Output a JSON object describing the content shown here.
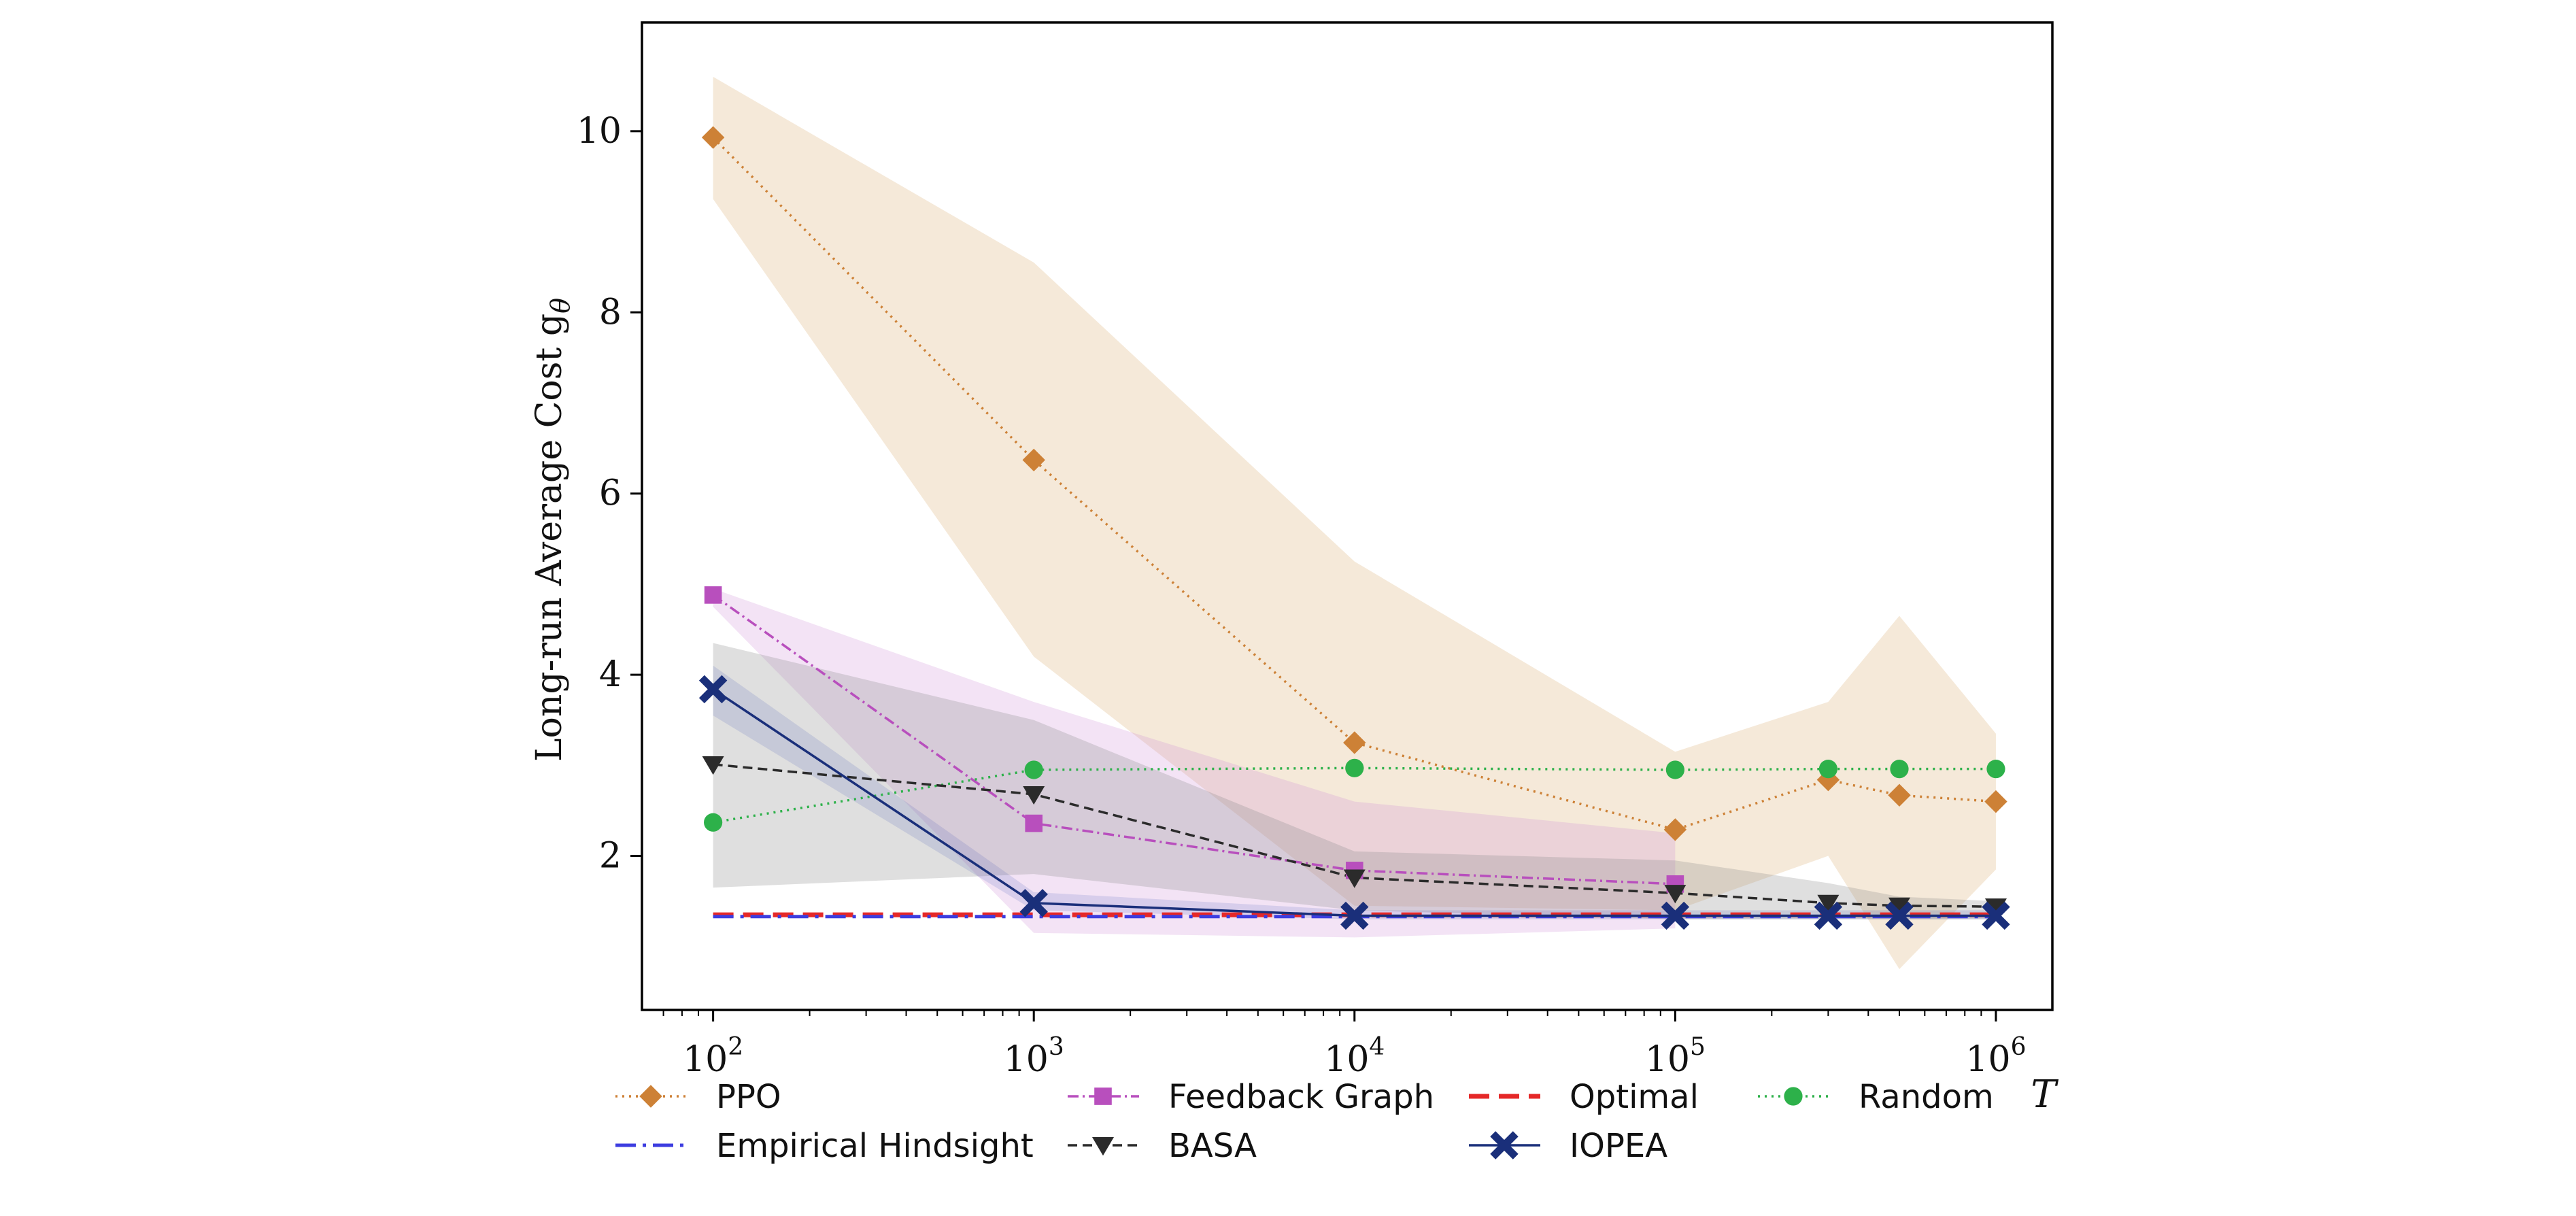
{
  "chart_data": {
    "type": "line",
    "xscale": "log",
    "xlim": [
      60,
      1500000
    ],
    "ylim": [
      0.3,
      11.2
    ],
    "xlabel": "T",
    "ylabel": "Long-run Average Cost g",
    "ylabel_sub": "θ",
    "x_ticks": [
      {
        "value": 100,
        "base": "10",
        "exp": "2"
      },
      {
        "value": 1000,
        "base": "10",
        "exp": "3"
      },
      {
        "value": 10000,
        "base": "10",
        "exp": "4"
      },
      {
        "value": 100000,
        "base": "10",
        "exp": "5"
      },
      {
        "value": 1000000,
        "base": "10",
        "exp": "6"
      }
    ],
    "y_ticks": [
      {
        "value": 2,
        "label": "2"
      },
      {
        "value": 4,
        "label": "4"
      },
      {
        "value": 6,
        "label": "6"
      },
      {
        "value": 8,
        "label": "8"
      },
      {
        "value": 10,
        "label": "10"
      }
    ],
    "bands": [
      {
        "name": "PPO",
        "color": "#f3e3cf",
        "opacity": 0.8,
        "x": [
          100,
          1000,
          10000,
          100000,
          300000,
          500000,
          1000000
        ],
        "lower": [
          9.25,
          4.2,
          1.45,
          1.4,
          2.0,
          0.75,
          1.85
        ],
        "upper": [
          10.6,
          8.55,
          5.25,
          3.15,
          3.7,
          4.65,
          3.35
        ]
      },
      {
        "name": "Feedback Graph",
        "color": "#cf8fd9",
        "opacity": 0.25,
        "x": [
          100,
          1000,
          10000,
          100000
        ],
        "lower": [
          4.75,
          1.15,
          1.1,
          1.2
        ],
        "upper": [
          4.95,
          3.7,
          2.6,
          2.25
        ]
      },
      {
        "name": "BASA",
        "color": "#8c8c8c",
        "opacity": 0.28,
        "x": [
          100,
          1000,
          10000,
          100000,
          300000,
          500000,
          1000000
        ],
        "lower": [
          1.65,
          1.8,
          1.4,
          1.3,
          1.3,
          1.3,
          1.3
        ],
        "upper": [
          4.35,
          3.5,
          2.05,
          1.95,
          1.7,
          1.55,
          1.5
        ]
      },
      {
        "name": "IOPEA",
        "color": "#3f51b5",
        "opacity": 0.15,
        "x": [
          100,
          1000,
          10000,
          100000,
          300000,
          500000,
          1000000
        ],
        "lower": [
          3.55,
          1.4,
          1.3,
          1.3,
          1.3,
          1.3,
          1.3
        ],
        "upper": [
          4.1,
          1.6,
          1.4,
          1.4,
          1.4,
          1.4,
          1.4
        ]
      }
    ],
    "series": [
      {
        "name": "PPO",
        "color": "#cd8136",
        "dash": "3 7",
        "width": 3.5,
        "marker": "diamond",
        "x": [
          100,
          1000,
          10000,
          100000,
          300000,
          500000,
          1000000
        ],
        "y": [
          9.93,
          6.37,
          3.25,
          2.29,
          2.84,
          2.67,
          2.6
        ]
      },
      {
        "name": "Feedback Graph",
        "color": "#b84fbd",
        "dash": "16 6 3 6",
        "width": 3.5,
        "marker": "square",
        "x": [
          100,
          1000,
          10000,
          100000
        ],
        "y": [
          4.88,
          2.36,
          1.84,
          1.69
        ]
      },
      {
        "name": "Optimal",
        "color": "#e52828",
        "dash": "30 14",
        "width": 7,
        "marker": "none",
        "x": [
          100,
          1000000
        ],
        "y": [
          1.35,
          1.35
        ]
      },
      {
        "name": "Random",
        "color": "#2db14a",
        "dash": "3 7",
        "width": 3.5,
        "marker": "circle",
        "x": [
          100,
          1000,
          10000,
          100000,
          300000,
          500000,
          1000000
        ],
        "y": [
          2.37,
          2.95,
          2.97,
          2.95,
          2.96,
          2.96,
          2.96
        ]
      },
      {
        "name": "Empirical Hindsight",
        "color": "#3d3de0",
        "dash": "30 10 5 10",
        "width": 5,
        "marker": "none",
        "x": [
          100,
          1000000
        ],
        "y": [
          1.33,
          1.33
        ]
      },
      {
        "name": "BASA",
        "color": "#2b2b2b",
        "dash": "14 8",
        "width": 3.5,
        "marker": "triangle-down",
        "x": [
          100,
          1000,
          10000,
          100000,
          300000,
          500000,
          1000000
        ],
        "y": [
          3.01,
          2.68,
          1.76,
          1.59,
          1.48,
          1.45,
          1.44
        ]
      },
      {
        "name": "IOPEA",
        "color": "#1a2f7a",
        "dash": "none",
        "width": 3.5,
        "marker": "x",
        "x": [
          100,
          1000,
          10000,
          100000,
          300000,
          500000,
          1000000
        ],
        "y": [
          3.84,
          1.48,
          1.34,
          1.34,
          1.34,
          1.34,
          1.34
        ]
      }
    ],
    "legend": {
      "placement": "bottom",
      "rows": [
        [
          "PPO",
          "Feedback Graph",
          "Optimal",
          "Random"
        ],
        [
          "Empirical Hindsight",
          "BASA",
          "IOPEA"
        ]
      ]
    }
  }
}
